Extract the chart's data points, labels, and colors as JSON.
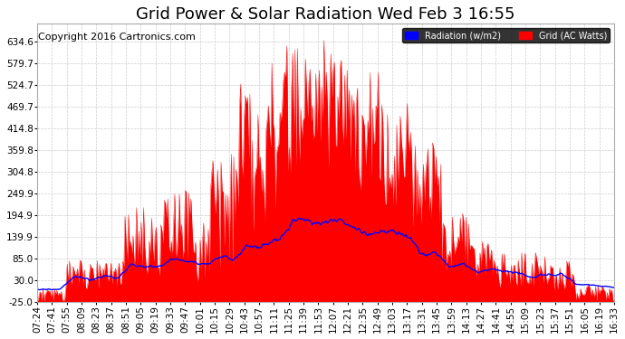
{
  "title": "Grid Power & Solar Radiation Wed Feb 3 16:55",
  "copyright": "Copyright 2016 Cartronics.com",
  "legend_radiation": "Radiation (w/m2)",
  "legend_grid": "Grid (AC Watts)",
  "ylim": [
    -25.0,
    680
  ],
  "yticks": [
    -25.0,
    30.0,
    85.0,
    139.9,
    194.9,
    249.9,
    304.8,
    359.8,
    414.8,
    469.7,
    524.7,
    579.7,
    634.6
  ],
  "bg_color": "#ffffff",
  "grid_color": "#cccccc",
  "red_color": "#ff0000",
  "blue_color": "#0000ff",
  "title_fontsize": 13,
  "copyright_fontsize": 8,
  "tick_fontsize": 7.5,
  "xtick_labels": [
    "07:24",
    "07:41",
    "07:55",
    "08:09",
    "08:23",
    "08:37",
    "08:51",
    "09:05",
    "09:19",
    "09:33",
    "09:47",
    "10:01",
    "10:15",
    "10:29",
    "10:43",
    "10:57",
    "11:11",
    "11:25",
    "11:39",
    "11:53",
    "12:07",
    "12:21",
    "12:35",
    "12:49",
    "13:03",
    "13:17",
    "13:31",
    "13:45",
    "13:59",
    "14:13",
    "14:27",
    "14:41",
    "14:55",
    "15:09",
    "15:23",
    "15:37",
    "15:51",
    "16:05",
    "16:19",
    "16:33"
  ]
}
